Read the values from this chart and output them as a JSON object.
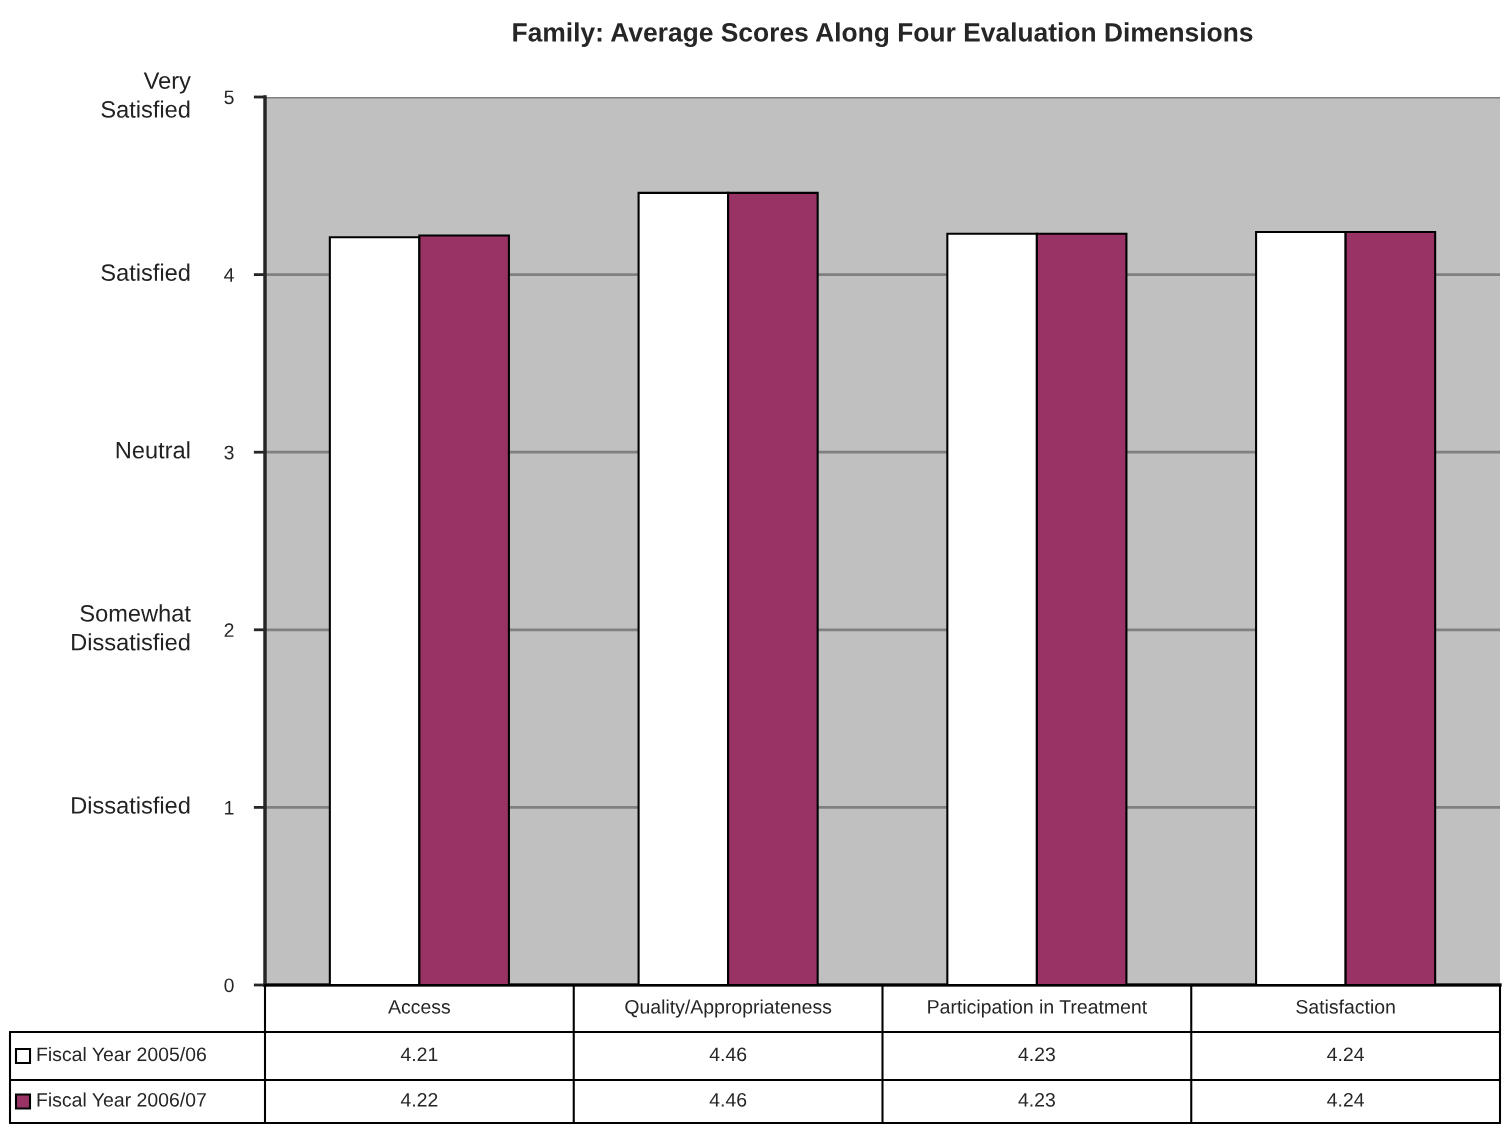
{
  "chart_data": {
    "type": "bar",
    "title": "Family: Average Scores Along Four Evaluation Dimensions",
    "categories": [
      "Access",
      "Quality/Appropriateness",
      "Participation in Treatment",
      "Satisfaction"
    ],
    "series": [
      {
        "name": "Fiscal Year 2005/06",
        "color": "#ffffff",
        "values": [
          4.21,
          4.46,
          4.23,
          4.24
        ]
      },
      {
        "name": "Fiscal Year 2006/07",
        "color": "#993366",
        "values": [
          4.22,
          4.46,
          4.23,
          4.24
        ]
      }
    ],
    "ylim": [
      0,
      5
    ],
    "yticks": [
      0,
      1,
      2,
      3,
      4,
      5
    ],
    "grid": "y",
    "legend": "bottom",
    "data_labels": true,
    "annotations": [
      "Very\nSatisfied",
      "Satisfied",
      "Neutral",
      "Somewhat\nDissatisfied",
      "Dissatisfied"
    ]
  }
}
